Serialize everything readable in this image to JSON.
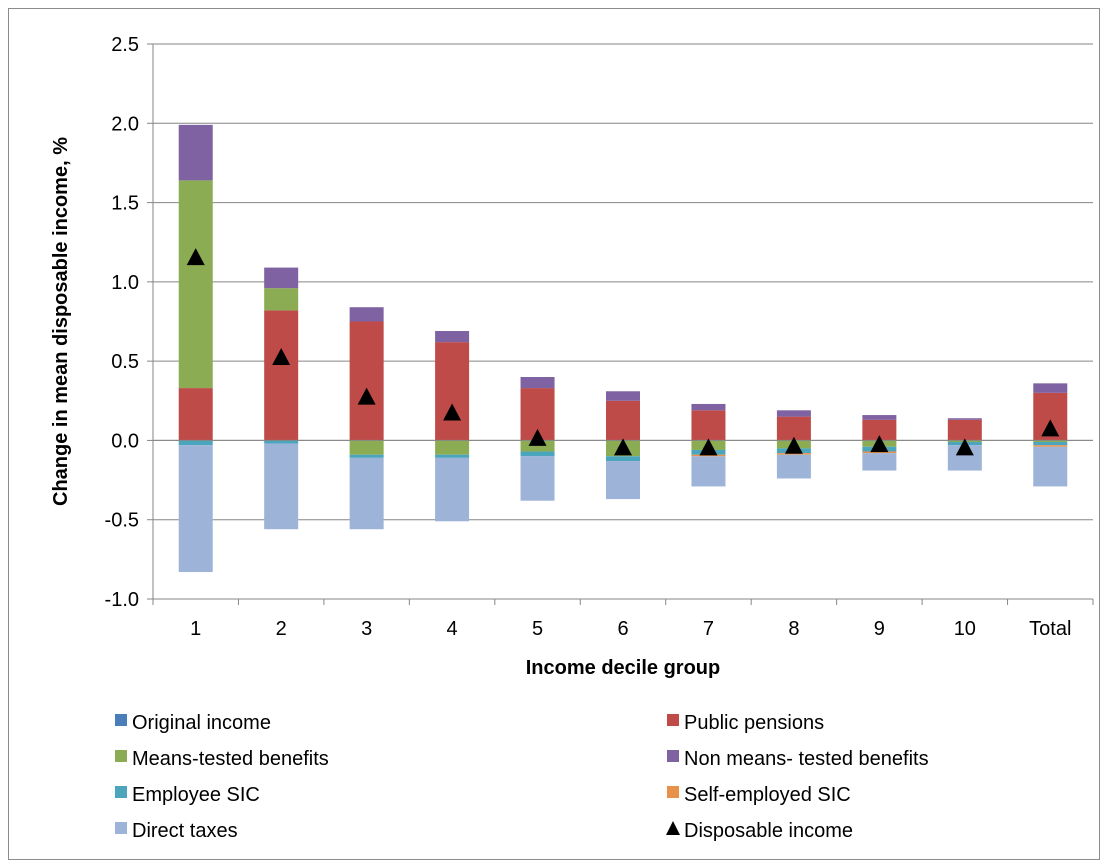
{
  "chart_data": {
    "type": "bar",
    "stacked": true,
    "title": "",
    "xlabel": "Income decile group",
    "ylabel": "Change in mean disposable income, %",
    "ylim": [
      -1.0,
      2.5
    ],
    "yticks": [
      -1.0,
      -0.5,
      0.0,
      0.5,
      1.0,
      1.5,
      2.0,
      2.5
    ],
    "ytick_labels": [
      "-1.0",
      "-0.5",
      "0.0",
      "0.5",
      "1.0",
      "1.5",
      "2.0",
      "2.5"
    ],
    "grid": "horizontal",
    "legend_position": "bottom",
    "categories": [
      "1",
      "2",
      "3",
      "4",
      "5",
      "6",
      "7",
      "8",
      "9",
      "10",
      "Total"
    ],
    "series": [
      {
        "name": "Original income",
        "kind": "bar",
        "color": "#4a7ebb",
        "values": [
          0,
          0,
          0,
          0,
          0,
          0,
          0,
          0,
          0,
          0,
          0
        ]
      },
      {
        "name": "Public pensions",
        "kind": "bar",
        "color": "#be4b48",
        "values": [
          0.33,
          0.82,
          0.75,
          0.62,
          0.33,
          0.25,
          0.19,
          0.15,
          0.13,
          0.13,
          0.3
        ]
      },
      {
        "name": "Means-tested benefits",
        "kind": "bar",
        "color": "#8bac52",
        "values": [
          1.31,
          0.14,
          -0.09,
          -0.09,
          -0.07,
          -0.1,
          -0.06,
          -0.05,
          -0.04,
          -0.01,
          -0.01
        ]
      },
      {
        "name": "Non means- tested benefits",
        "kind": "bar",
        "color": "#7e62a1",
        "values": [
          0.35,
          0.13,
          0.09,
          0.07,
          0.07,
          0.06,
          0.04,
          0.04,
          0.03,
          0.01,
          0.06
        ]
      },
      {
        "name": "Employee SIC",
        "kind": "bar",
        "color": "#4aa5bd",
        "values": [
          -0.03,
          -0.02,
          -0.02,
          -0.02,
          -0.03,
          -0.03,
          -0.03,
          -0.03,
          -0.03,
          -0.02,
          -0.02
        ]
      },
      {
        "name": "Self-employed SIC",
        "kind": "bar",
        "color": "#e8914a",
        "values": [
          0,
          0,
          0,
          0,
          0,
          0,
          -0.01,
          -0.01,
          -0.01,
          0,
          -0.01
        ]
      },
      {
        "name": "Direct taxes",
        "kind": "bar",
        "color": "#9db3d8",
        "values": [
          -0.8,
          -0.54,
          -0.45,
          -0.4,
          -0.28,
          -0.24,
          -0.19,
          -0.15,
          -0.11,
          -0.16,
          -0.25
        ]
      },
      {
        "name": "Disposable income",
        "kind": "marker",
        "color": "#000000",
        "values": [
          1.15,
          0.52,
          0.27,
          0.17,
          0.01,
          -0.05,
          -0.05,
          -0.04,
          -0.03,
          -0.05,
          0.07
        ]
      }
    ]
  }
}
